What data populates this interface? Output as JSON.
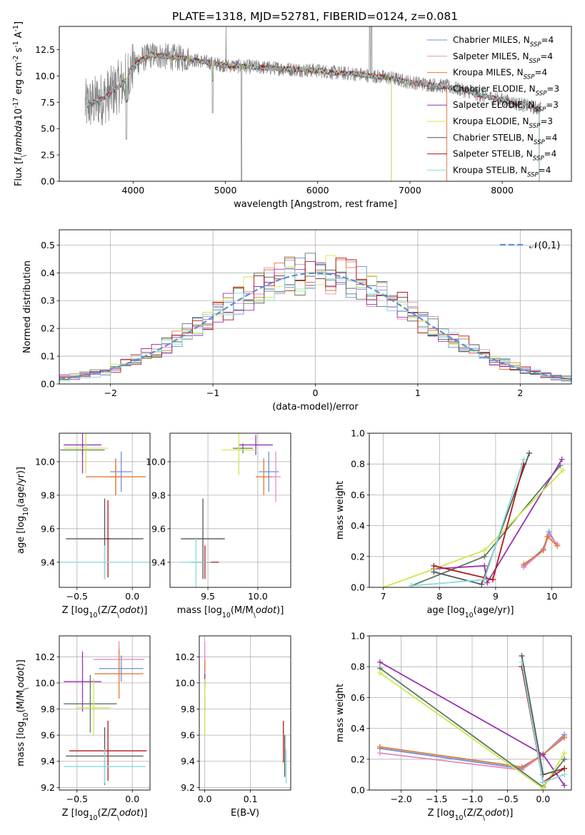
{
  "title": "PLATE=1318, MJD=52781, FIBERID=0124, z=0.081",
  "colors": {
    "chabrier_miles": "#6a8fd6",
    "salpeter_miles": "#e58ac3",
    "kroupa_miles": "#e27a34",
    "chabrier_elodie": "#5a7a62",
    "salpeter_elodie": "#9a32b4",
    "kroupa_elodie": "#cde84e",
    "chabrier_stelib": "#555555",
    "salpeter_stelib": "#b01818",
    "kroupa_stelib": "#88dcdc",
    "data": "#808080",
    "gauss": "#5b8ed8",
    "grid": "#b0b0b0"
  },
  "chart_data": [
    {
      "id": "spectrum",
      "type": "line",
      "title": "PLATE=1318, MJD=52781, FIBERID=0124, z=0.081",
      "xlabel": "wavelength [Angstrom, rest frame]",
      "ylabel": "Flux [f$_\\lambda$10$^{-17}$ erg cm$^{-2}$ s$^{-1}$ A$^{-1}$]",
      "xlim": [
        3200,
        8750
      ],
      "ylim": [
        0,
        14.7
      ],
      "xticks": [
        "4000",
        "5000",
        "6000",
        "7000",
        "8000"
      ],
      "yticks": [
        "0.0",
        "2.5",
        "5.0",
        "7.5",
        "10.0",
        "12.5"
      ],
      "legend_position": "top-right",
      "legend": [
        "Chabrier MILES, N$_{SSP}$=4",
        "Salpeter MILES, N$_{SSP}$=4",
        "Kroupa MILES, N$_{SSP}$=4",
        "Chabrier ELODIE, N$_{SSP}$=3",
        "Salpeter ELODIE, N$_{SSP}$=3",
        "Kroupa ELODIE, N$_{SSP}$=3",
        "Chabrier STELIB, N$_{SSP}$=4",
        "Salpeter STELIB, N$_{SSP}$=4",
        "Kroupa STELIB, N$_{SSP}$=4"
      ],
      "continuum": {
        "x": [
          3500,
          3700,
          3900,
          4000,
          4100,
          4200,
          4400,
          4600,
          4800,
          5000,
          5200,
          5400,
          5600,
          5800,
          6000,
          6200,
          6400,
          6600,
          6800,
          7000,
          7200,
          7400,
          7600,
          7800,
          8000,
          8200,
          8400
        ],
        "y": [
          7.2,
          8.0,
          9.4,
          11.0,
          11.6,
          12.0,
          11.8,
          11.6,
          11.3,
          11.0,
          10.9,
          10.8,
          10.7,
          10.6,
          10.5,
          10.3,
          10.2,
          10.0,
          9.8,
          9.4,
          9.2,
          9.0,
          8.6,
          8.1,
          7.7,
          7.3,
          6.9
        ]
      }
    },
    {
      "id": "residuals",
      "type": "line",
      "xlabel": "(data-model)/error",
      "ylabel": "Normed distribution",
      "xlim": [
        -2.5,
        2.5
      ],
      "ylim": [
        0,
        0.555
      ],
      "xticks": [
        "−2",
        "−1",
        "0",
        "1",
        "2"
      ],
      "yticks": [
        "0.0",
        "0.1",
        "0.2",
        "0.3",
        "0.4",
        "0.5"
      ],
      "legend": [
        "$\\mathcal{N}(0,1)$"
      ],
      "legend_position": "top-right",
      "bins": {
        "start": -2.5,
        "width": 0.1,
        "count": 50
      }
    },
    {
      "id": "age_vs_Z",
      "type": "scatter",
      "xlabel": "Z [log$_{10}$(Z/Z$_\\odot$)]",
      "ylabel": "age  [log$_{10}$(age/yr)]",
      "xlim": [
        -0.66,
        0.16
      ],
      "ylim": [
        9.25,
        10.17
      ],
      "xticks": [
        "−0.5",
        "0.0"
      ],
      "yticks": [
        "9.4",
        "9.6",
        "9.8",
        "10.0"
      ],
      "points": [
        {
          "series": "chabrier_miles",
          "x": -0.1,
          "y": 9.94,
          "xerr": 0.1,
          "yerr": 0.12
        },
        {
          "series": "salpeter_miles",
          "x": -0.15,
          "y": 9.91,
          "xerr": 0.05,
          "yerr": 0.11
        },
        {
          "series": "kroupa_miles",
          "x": -0.15,
          "y": 9.91,
          "xerr": 0.27,
          "yerr": 0.11
        },
        {
          "series": "chabrier_elodie",
          "x": -0.45,
          "y": 10.07,
          "xerr": 0.2,
          "yerr": 0.03
        },
        {
          "series": "salpeter_elodie",
          "x": -0.45,
          "y": 10.1,
          "xerr": 0.17,
          "yerr": 0.17
        },
        {
          "series": "kroupa_elodie",
          "x": -0.42,
          "y": 10.08,
          "xerr": 0.2,
          "yerr": 0.15
        },
        {
          "series": "chabrier_stelib",
          "x": -0.25,
          "y": 9.54,
          "xerr": 0.35,
          "yerr": 0.24
        },
        {
          "series": "salpeter_stelib",
          "x": -0.22,
          "y": 9.54,
          "xerr": 0.02,
          "yerr": 0.23
        },
        {
          "series": "kroupa_stelib",
          "x": -0.25,
          "y": 9.4,
          "xerr": 0.4,
          "yerr": 0.1
        }
      ]
    },
    {
      "id": "age_vs_mass",
      "type": "scatter",
      "xlabel": "mass [log$_{10}$(M/M$_\\odot$)]",
      "ylabel": "",
      "xlim": [
        9.12,
        10.33
      ],
      "ylim": [
        9.25,
        10.17
      ],
      "xticks": [
        "9.5",
        "10.0"
      ],
      "yticks": [
        "9.4",
        "9.6",
        "9.8",
        "10.0"
      ],
      "points": [
        {
          "series": "chabrier_miles",
          "x": 10.11,
          "y": 9.94,
          "xerr": 0.1,
          "yerr": 0.12
        },
        {
          "series": "salpeter_miles",
          "x": 10.18,
          "y": 9.91,
          "xerr": 0.05,
          "yerr": 0.15
        },
        {
          "series": "kroupa_miles",
          "x": 10.06,
          "y": 9.91,
          "xerr": 0.08,
          "yerr": 0.11
        },
        {
          "series": "chabrier_elodie",
          "x": 9.85,
          "y": 10.08,
          "xerr": 0.1,
          "yerr": 0.03
        },
        {
          "series": "salpeter_elodie",
          "x": 9.98,
          "y": 10.1,
          "xerr": 0.17,
          "yerr": 0.06
        },
        {
          "series": "kroupa_elodie",
          "x": 9.81,
          "y": 10.07,
          "xerr": 0.17,
          "yerr": 0.15
        },
        {
          "series": "chabrier_stelib",
          "x": 9.45,
          "y": 9.54,
          "xerr": 0.22,
          "yerr": 0.24
        },
        {
          "series": "salpeter_stelib",
          "x": 9.47,
          "y": 9.4,
          "xerr": 0.14,
          "yerr": 0.1
        },
        {
          "series": "kroupa_stelib",
          "x": 9.38,
          "y": 9.4,
          "xerr": 0.15,
          "yerr": 0.15
        }
      ]
    },
    {
      "id": "weight_vs_age",
      "type": "line",
      "xlabel": "age  [log$_{10}$(age/yr)]",
      "ylabel": "mass weight",
      "xlim": [
        6.75,
        10.35
      ],
      "ylim": [
        0,
        1.0
      ],
      "xticks": [
        "7",
        "8",
        "9",
        "10"
      ],
      "yticks": [
        "0.0",
        "0.2",
        "0.4",
        "0.6",
        "0.8",
        "1.0"
      ],
      "series": [
        {
          "key": "chabrier_miles",
          "x": [
            9.5,
            9.85,
            9.95,
            10.1
          ],
          "y": [
            0.14,
            0.25,
            0.36,
            0.27
          ]
        },
        {
          "key": "salpeter_miles",
          "x": [
            9.5,
            9.85,
            9.95,
            10.1
          ],
          "y": [
            0.13,
            0.24,
            0.34,
            0.28
          ]
        },
        {
          "key": "kroupa_miles",
          "x": [
            9.5,
            9.85,
            9.92,
            10.1
          ],
          "y": [
            0.15,
            0.24,
            0.33,
            0.27
          ]
        },
        {
          "key": "chabrier_elodie",
          "x": [
            7.5,
            8.8,
            10.15
          ],
          "y": [
            0.01,
            0.2,
            0.79
          ]
        },
        {
          "key": "salpeter_elodie",
          "x": [
            7.9,
            8.8,
            8.85,
            10.18
          ],
          "y": [
            0.12,
            0.14,
            0.03,
            0.83
          ]
        },
        {
          "key": "kroupa_elodie",
          "x": [
            7.0,
            8.8,
            10.2
          ],
          "y": [
            0.0,
            0.24,
            0.76
          ]
        },
        {
          "key": "chabrier_stelib",
          "x": [
            7.9,
            8.75,
            9.6
          ],
          "y": [
            0.1,
            0.02,
            0.87
          ]
        },
        {
          "key": "salpeter_stelib",
          "x": [
            7.9,
            8.95,
            9.5
          ],
          "y": [
            0.14,
            0.05,
            0.8
          ]
        },
        {
          "key": "kroupa_stelib",
          "x": [
            7.5,
            8.8,
            9.5
          ],
          "y": [
            0.01,
            0.05,
            0.83
          ]
        }
      ]
    },
    {
      "id": "mass_vs_Z",
      "type": "scatter",
      "xlabel": "Z [log$_{10}$(Z/Z$_\\odot$)]",
      "ylabel": "mass [log$_{10}$(M/M$_\\odot$)]",
      "xlim": [
        -0.66,
        0.16
      ],
      "ylim": [
        9.18,
        10.36
      ],
      "xticks": [
        "−0.5",
        "0.0"
      ],
      "yticks": [
        "9.2",
        "9.4",
        "9.6",
        "9.8",
        "10.0",
        "10.2"
      ],
      "points": [
        {
          "series": "chabrier_miles",
          "x": -0.1,
          "y": 10.11,
          "xerr": 0.2,
          "yerr": 0.1
        },
        {
          "series": "salpeter_miles",
          "x": -0.12,
          "y": 10.18,
          "xerr": 0.23,
          "yerr": 0.14
        },
        {
          "series": "kroupa_miles",
          "x": -0.12,
          "y": 10.07,
          "xerr": 0.22,
          "yerr": 0.19
        },
        {
          "series": "chabrier_elodie",
          "x": -0.38,
          "y": 9.84,
          "xerr": 0.24,
          "yerr": 0.22
        },
        {
          "series": "salpeter_elodie",
          "x": -0.45,
          "y": 10.01,
          "xerr": 0.17,
          "yerr": 0.23
        },
        {
          "series": "kroupa_elodie",
          "x": -0.35,
          "y": 9.81,
          "xerr": 0.15,
          "yerr": 0.22
        },
        {
          "series": "chabrier_stelib",
          "x": -0.25,
          "y": 9.44,
          "xerr": 0.35,
          "yerr": 0.22
        },
        {
          "series": "salpeter_stelib",
          "x": -0.22,
          "y": 9.48,
          "xerr": 0.35,
          "yerr": 0.23
        },
        {
          "series": "kroupa_stelib",
          "x": -0.25,
          "y": 9.36,
          "xerr": 0.37,
          "yerr": 0.13
        }
      ]
    },
    {
      "id": "mass_vs_EBV",
      "type": "scatter",
      "xlabel": "E(B-V)",
      "ylabel": "",
      "xlim": [
        -0.012,
        0.188
      ],
      "ylim": [
        9.18,
        10.36
      ],
      "xticks": [
        "0.0",
        "0.1"
      ],
      "yticks": [
        "9.2",
        "9.4",
        "9.6",
        "9.8",
        "10.0",
        "10.2"
      ],
      "points": [
        {
          "series": "chabrier_miles",
          "x": 0.0,
          "y": 10.11,
          "xerr": 0.0,
          "yerr": 0.1
        },
        {
          "series": "salpeter_miles",
          "x": 0.0,
          "y": 10.18,
          "xerr": 0.0,
          "yerr": 0.14
        },
        {
          "series": "kroupa_miles",
          "x": 0.0,
          "y": 10.07,
          "xerr": 0.0,
          "yerr": 0.1
        },
        {
          "series": "chabrier_elodie",
          "x": 0.0,
          "y": 9.84,
          "xerr": 0.0,
          "yerr": 0.05
        },
        {
          "series": "salpeter_elodie",
          "x": 0.0,
          "y": 10.01,
          "xerr": 0.0,
          "yerr": 0.06
        },
        {
          "series": "kroupa_elodie",
          "x": 0.0,
          "y": 9.81,
          "xerr": 0.0,
          "yerr": 0.22
        },
        {
          "series": "chabrier_stelib",
          "x": 0.175,
          "y": 9.44,
          "xerr": 0.0,
          "yerr": 0.16
        },
        {
          "series": "salpeter_stelib",
          "x": 0.172,
          "y": 9.55,
          "xerr": 0.0,
          "yerr": 0.16
        },
        {
          "series": "kroupa_stelib",
          "x": 0.178,
          "y": 9.36,
          "xerr": 0.0,
          "yerr": 0.13
        }
      ]
    },
    {
      "id": "weight_vs_Z",
      "type": "line",
      "xlabel": "Z [log$_{10}$(Z/Z$_\\odot$)]",
      "ylabel": "mass weight",
      "xlim": [
        -2.45,
        0.4
      ],
      "ylim": [
        0,
        1.0
      ],
      "xticks": [
        "−2.0",
        "−1.5",
        "−1.0",
        "−0.5",
        "0.0"
      ],
      "yticks": [
        "0.0",
        "0.2",
        "0.4",
        "0.6",
        "0.8",
        "1.0"
      ],
      "series": [
        {
          "key": "chabrier_miles",
          "x": [
            -2.3,
            -0.3,
            0.0,
            0.3
          ],
          "y": [
            0.27,
            0.14,
            0.23,
            0.36
          ]
        },
        {
          "key": "salpeter_miles",
          "x": [
            -2.3,
            -0.3,
            0.0,
            0.3
          ],
          "y": [
            0.24,
            0.13,
            0.23,
            0.35
          ]
        },
        {
          "key": "kroupa_miles",
          "x": [
            -2.3,
            -0.3,
            0.0,
            0.3
          ],
          "y": [
            0.28,
            0.15,
            0.23,
            0.34
          ]
        },
        {
          "key": "chabrier_elodie",
          "x": [
            -2.3,
            0.0,
            0.3
          ],
          "y": [
            0.79,
            0.02,
            0.2
          ]
        },
        {
          "key": "salpeter_elodie",
          "x": [
            -2.3,
            0.0,
            0.3
          ],
          "y": [
            0.83,
            0.23,
            0.03
          ]
        },
        {
          "key": "kroupa_elodie",
          "x": [
            -2.3,
            0.0,
            0.3
          ],
          "y": [
            0.76,
            0.01,
            0.24
          ]
        },
        {
          "key": "chabrier_stelib",
          "x": [
            -0.3,
            0.0,
            0.3
          ],
          "y": [
            0.87,
            0.1,
            0.14
          ]
        },
        {
          "key": "salpeter_stelib",
          "x": [
            -0.3,
            0.0,
            0.3
          ],
          "y": [
            0.8,
            0.05,
            0.14
          ]
        },
        {
          "key": "kroupa_stelib",
          "x": [
            -0.3,
            0.0,
            0.3
          ],
          "y": [
            0.83,
            0.05,
            0.1
          ]
        }
      ]
    }
  ]
}
